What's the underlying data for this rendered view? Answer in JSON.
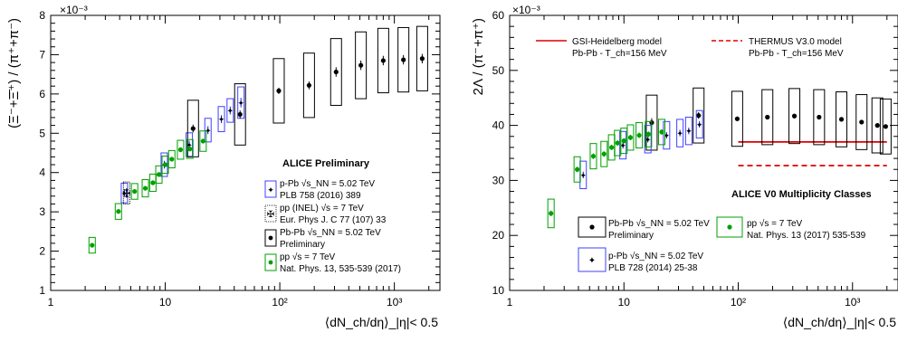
{
  "chart_data": [
    {
      "type": "scatter",
      "log_x": true,
      "xlabel": "⟨dN_ch/dη⟩_|η|< 0.5",
      "ylabel": "(Ξ⁻+Ξ̄⁺) / (π⁺+π⁻)",
      "y_multiplier": "×10⁻³",
      "xlim": [
        1,
        2500
      ],
      "ylim": [
        1,
        8
      ],
      "x_ticks": [
        "1",
        "10",
        "10²",
        "10³"
      ],
      "y_ticks": [
        "1",
        "2",
        "3",
        "4",
        "5",
        "6",
        "7",
        "8"
      ],
      "annotation": "ALICE Preliminary",
      "series": [
        {
          "name": "p-Pb √s_NN = 5.02 TeV",
          "reference": "PLB 758 (2016) 389",
          "color": "#1a1aff",
          "box_color": "#4040ff",
          "marker": "star",
          "x": [
            4.4,
            9.8,
            16.2,
            23.6,
            30.9,
            36.9,
            45.8
          ],
          "y": [
            3.48,
            4.2,
            4.71,
            5.08,
            5.36,
            5.58,
            5.78
          ],
          "sys": [
            0.25,
            0.3,
            0.3,
            0.3,
            0.32,
            0.3,
            0.4
          ],
          "stat": [
            0.1,
            0.1,
            0.1,
            0.1,
            0.1,
            0.1,
            0.12
          ]
        },
        {
          "name": "pp (INEL) √s = 7 TeV",
          "reference": "Eur. Phys J. C 77 (107) 33",
          "color": "#000000",
          "box_color": "#000000",
          "marker": "open-cross",
          "x": [
            4.6
          ],
          "y": [
            3.48
          ],
          "sys": [
            0.28
          ],
          "stat": [
            0.12
          ]
        },
        {
          "name": "Pb-Pb √s_NN = 5.02 TeV",
          "reference": "Preliminary",
          "color": "#000000",
          "box_color": "#000000",
          "marker": "dot",
          "x": [
            17.5,
            45,
            98,
            180,
            310,
            510,
            800,
            1200,
            1750
          ],
          "y": [
            5.12,
            5.48,
            6.08,
            6.22,
            6.56,
            6.73,
            6.85,
            6.87,
            6.9
          ],
          "sys": [
            0.72,
            0.78,
            0.82,
            0.82,
            0.85,
            0.85,
            0.82,
            0.82,
            0.82
          ],
          "stat": [
            0.1,
            0.1,
            0.08,
            0.1,
            0.12,
            0.12,
            0.12,
            0.12,
            0.12
          ]
        },
        {
          "name": "pp √s = 7 TeV",
          "reference": "Nat. Phys. 13, 535-539 (2017)",
          "color": "#00a000",
          "box_color": "#00a000",
          "marker": "dot",
          "x": [
            2.3,
            3.9,
            5.4,
            6.7,
            7.8,
            8.8,
            10.0,
            11.4,
            13.6,
            16.4,
            21.4
          ],
          "y": [
            2.15,
            3.01,
            3.52,
            3.6,
            3.74,
            3.95,
            4.2,
            4.34,
            4.58,
            4.6,
            4.8
          ],
          "sys": [
            0.2,
            0.2,
            0.2,
            0.22,
            0.22,
            0.22,
            0.22,
            0.22,
            0.24,
            0.24,
            0.26
          ],
          "stat": [
            0.06,
            0.06,
            0.06,
            0.06,
            0.06,
            0.06,
            0.06,
            0.06,
            0.06,
            0.06,
            0.06
          ]
        }
      ]
    },
    {
      "type": "scatter",
      "log_x": true,
      "xlabel": "⟨dN_ch/dη⟩_|η|< 0.5",
      "ylabel": "2Λ / (π⁻+π⁺)",
      "y_multiplier": "×10⁻³",
      "xlim": [
        1,
        2500
      ],
      "ylim": [
        10,
        60
      ],
      "x_ticks": [
        "1",
        "10",
        "10²",
        "10³"
      ],
      "y_ticks": [
        "10",
        "20",
        "30",
        "40",
        "50",
        "60"
      ],
      "annotation": "ALICE V0 Multiplicity Classes",
      "models": [
        {
          "name": "GSI-Heidelberg model",
          "detail": "Pb-Pb - T_ch=156 MeV",
          "color": "#dd0000",
          "style": "solid",
          "y": 37.0,
          "x_range": [
            100,
            2000
          ]
        },
        {
          "name": "THERMUS V3.0 model",
          "detail": "Pb-Pb - T_ch=156 MeV",
          "color": "#dd0000",
          "style": "dashed",
          "y": 32.7,
          "x_range": [
            100,
            2000
          ]
        }
      ],
      "series": [
        {
          "name": "Pb-Pb √s_NN = 5.02 TeV",
          "reference": "Preliminary",
          "color": "#000000",
          "box_color": "#000000",
          "marker": "dot",
          "x": [
            17.5,
            45,
            98,
            180,
            310,
            510,
            800,
            1200,
            1650,
            1950
          ],
          "y": [
            40.5,
            41.8,
            41.2,
            41.5,
            41.7,
            41.5,
            41.1,
            40.6,
            40.0,
            39.8
          ],
          "sys": [
            5.0,
            5.0,
            5.0,
            5.0,
            5.0,
            5.0,
            5.0,
            5.0,
            5.0,
            5.0
          ],
          "stat": [
            0.8,
            0.6,
            0.4,
            0.4,
            0.4,
            0.4,
            0.4,
            0.4,
            0.4,
            0.4
          ]
        },
        {
          "name": "p-Pb √s_NN = 5.02 TeV",
          "reference": "PLB 728 (2014) 25-38",
          "color": "#1a1aff",
          "box_color": "#4040ff",
          "marker": "star",
          "x": [
            4.4,
            9.8,
            16.2,
            23.6,
            30.9,
            36.9,
            45.8
          ],
          "y": [
            31.0,
            36.4,
            37.5,
            38.2,
            38.6,
            39.0,
            40.2
          ],
          "sys": [
            2.5,
            2.5,
            2.5,
            2.5,
            2.5,
            2.5,
            2.5
          ],
          "stat": [
            0.6,
            0.6,
            0.6,
            0.6,
            0.6,
            0.6,
            0.6
          ]
        },
        {
          "name": "pp √s = 7 TeV",
          "reference": "Nat. Phys. 13 (2017) 535-539",
          "color": "#00a000",
          "box_color": "#00a000",
          "marker": "dot",
          "x": [
            2.3,
            3.9,
            5.4,
            6.7,
            7.8,
            8.8,
            10.0,
            11.4,
            13.6,
            16.4,
            21.4
          ],
          "y": [
            24.0,
            32.0,
            34.4,
            34.8,
            36.0,
            36.8,
            37.2,
            37.8,
            38.2,
            38.4,
            38.8
          ],
          "sys": [
            2.6,
            2.3,
            2.3,
            2.3,
            2.3,
            2.3,
            2.3,
            2.3,
            2.3,
            2.3,
            2.3
          ],
          "stat": [
            0.5,
            0.5,
            0.5,
            0.5,
            0.5,
            0.5,
            0.5,
            0.5,
            0.5,
            0.5,
            0.5
          ]
        }
      ]
    }
  ]
}
